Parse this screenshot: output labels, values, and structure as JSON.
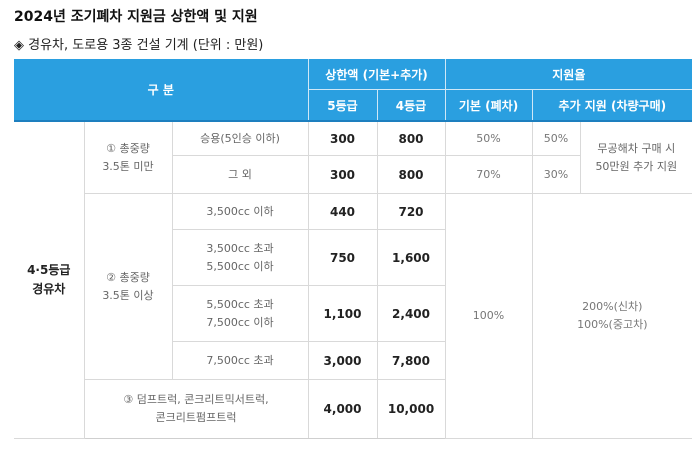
{
  "title": "2024년 조기폐차 지원금 상한액 및 지원",
  "subtitle": "◈ 경유차, 도로용 3종 건설 기계 (단위 : 만원)",
  "header": {
    "category": "구 분",
    "limit_group": "상한액 (기본+추가)",
    "grade5": "5등급",
    "grade4": "4등급",
    "support_group": "지원율",
    "basic": "기본 (폐차)",
    "extra": "추가 지원 (차량구매)"
  },
  "group_label_line1": "4·5등급",
  "group_label_line2": "경유차",
  "weight_under_line1": "① 총중량",
  "weight_under_line2": "3.5톤 미만",
  "weight_over_line1": "② 총중량",
  "weight_over_line2": "3.5톤 이상",
  "rows": [
    {
      "sub": "승용(5인승 이하)",
      "g5": "300",
      "g4": "800",
      "basic": "50%",
      "extra": "50%"
    },
    {
      "sub": "그 외",
      "g5": "300",
      "g4": "800",
      "basic": "70%",
      "extra": "30%"
    },
    {
      "sub": "3,500cc 이하",
      "g5": "440",
      "g4": "720"
    },
    {
      "sub_line1": "3,500cc 초과",
      "sub_line2": "5,500cc 이하",
      "g5": "750",
      "g4": "1,600"
    },
    {
      "sub_line1": "5,500cc 초과",
      "sub_line2": "7,500cc 이하",
      "g5": "1,100",
      "g4": "2,400"
    },
    {
      "sub": "7,500cc 초과",
      "g5": "3,000",
      "g4": "7,800"
    },
    {
      "sub_line1": "③ 덤프트럭, 콘크리트믹서트럭,",
      "sub_line2": "콘크리트펌프트럭",
      "g5": "4,000",
      "g4": "10,000"
    }
  ],
  "note_line1": "무공해차 구매 시",
  "note_line2": "50만원 추가 지원",
  "heavy_basic": "100%",
  "heavy_extra_line1": "200%(신차)",
  "heavy_extra_line2": "100%(중고차)"
}
